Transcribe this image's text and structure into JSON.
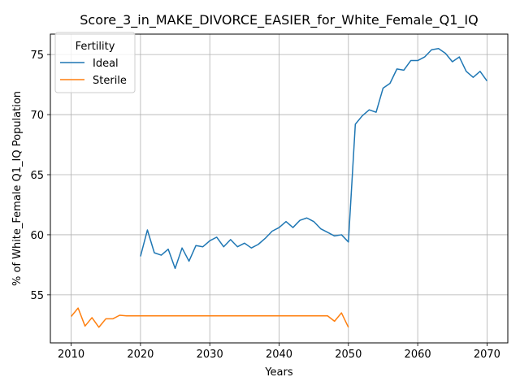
{
  "chart_data": {
    "type": "line",
    "title": "Score_3_in_MAKE_DIVORCE_EASIER_for_White_Female_Q1_IQ",
    "xlabel": "Years",
    "ylabel": "% of White_Female Q1_IQ Population",
    "xlim": [
      2007,
      2073
    ],
    "ylim": [
      51.0,
      76.7
    ],
    "xticks": [
      2010,
      2020,
      2030,
      2040,
      2050,
      2060,
      2070
    ],
    "yticks": [
      55,
      60,
      65,
      70,
      75
    ],
    "grid": true,
    "legend": {
      "title": "Fertility",
      "placement": "upper-left"
    },
    "series": [
      {
        "name": "Ideal",
        "color": "#1f77b4",
        "x": [
          2020,
          2021,
          2022,
          2023,
          2024,
          2025,
          2026,
          2027,
          2028,
          2029,
          2030,
          2031,
          2032,
          2033,
          2034,
          2035,
          2036,
          2037,
          2038,
          2039,
          2040,
          2041,
          2042,
          2043,
          2044,
          2045,
          2046,
          2047,
          2048,
          2049,
          2050,
          2051,
          2052,
          2053,
          2054,
          2055,
          2056,
          2057,
          2058,
          2059,
          2060,
          2061,
          2062,
          2063,
          2064,
          2065,
          2066,
          2067,
          2068,
          2069,
          2070
        ],
        "values": [
          58.2,
          60.4,
          58.5,
          58.3,
          58.8,
          57.2,
          58.9,
          57.8,
          59.1,
          59.0,
          59.5,
          59.8,
          59.0,
          59.6,
          59.0,
          59.3,
          58.9,
          59.2,
          59.7,
          60.3,
          60.6,
          61.1,
          60.6,
          61.2,
          61.4,
          61.1,
          60.5,
          60.2,
          59.9,
          60.0,
          59.4,
          69.2,
          69.9,
          70.4,
          70.2,
          72.2,
          72.6,
          73.8,
          73.7,
          74.5,
          74.5,
          74.8,
          75.4,
          75.5,
          75.1,
          74.4,
          74.8,
          73.6,
          73.1,
          73.6,
          72.8
        ]
      },
      {
        "name": "Sterile",
        "color": "#ff7f0e",
        "x": [
          2010,
          2011,
          2012,
          2013,
          2014,
          2015,
          2016,
          2017,
          2018,
          2019,
          2020,
          2021,
          2022,
          2023,
          2024,
          2025,
          2026,
          2027,
          2028,
          2029,
          2030,
          2031,
          2032,
          2033,
          2034,
          2035,
          2036,
          2037,
          2038,
          2039,
          2040,
          2041,
          2042,
          2043,
          2044,
          2045,
          2046,
          2047,
          2048,
          2049,
          2050
        ],
        "values": [
          53.2,
          53.9,
          52.4,
          53.1,
          52.3,
          53.0,
          53.0,
          53.3,
          53.25,
          53.25,
          53.25,
          53.25,
          53.25,
          53.25,
          53.25,
          53.25,
          53.25,
          53.25,
          53.25,
          53.25,
          53.25,
          53.25,
          53.25,
          53.25,
          53.25,
          53.25,
          53.25,
          53.25,
          53.25,
          53.25,
          53.25,
          53.25,
          53.25,
          53.25,
          53.25,
          53.25,
          53.25,
          53.25,
          52.8,
          53.5,
          52.3
        ]
      }
    ]
  }
}
